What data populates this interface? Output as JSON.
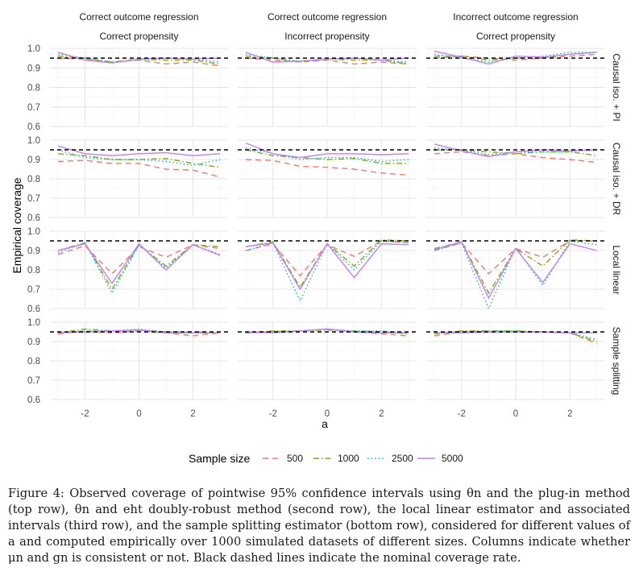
{
  "chart_data": {
    "type": "line",
    "facet_columns": [
      {
        "top": "Correct outcome regression",
        "bottom": "Correct propensity"
      },
      {
        "top": "Correct outcome regression",
        "bottom": "Incorrect propensity"
      },
      {
        "top": "Incorrect outcome regression",
        "bottom": "Correct propensity"
      }
    ],
    "facet_rows": [
      "Causal iso. + PI",
      "Causal iso. + DR",
      "Local linear",
      "Sample splitting"
    ],
    "xlabel": "a",
    "ylabel": "Empirical coverage",
    "x": [
      -3,
      -2,
      -1,
      0,
      1,
      2,
      3
    ],
    "x_ticks": [
      "-2",
      "0",
      "2"
    ],
    "x_tick_values": [
      -2,
      0,
      2
    ],
    "xlim": [
      -3.3,
      3.3
    ],
    "ylim": [
      0.6,
      1.0
    ],
    "y_ticks": [
      "0.6",
      "0.7",
      "0.8",
      "0.9",
      "1.0"
    ],
    "y_tick_values": [
      0.6,
      0.7,
      0.8,
      0.9,
      1.0
    ],
    "nominal_coverage": 0.95,
    "grid": true,
    "legend_title": "Sample size",
    "legend_position": "bottom",
    "series_styles": [
      {
        "name": "500",
        "color": "#f8766d",
        "dash": "7,5"
      },
      {
        "name": "1000",
        "color": "#7cae00",
        "dash": "7,3,1.5,3"
      },
      {
        "name": "2500",
        "color": "#00bfc4",
        "dash": "1.5,3"
      },
      {
        "name": "5000",
        "color": "#c77cff",
        "dash": ""
      }
    ],
    "panels": [
      [
        [
          [
            0.95,
            0.945,
            0.93,
            0.94,
            0.92,
            0.93,
            0.91
          ],
          [
            0.96,
            0.95,
            0.93,
            0.945,
            0.94,
            0.94,
            0.92
          ],
          [
            0.97,
            0.95,
            0.93,
            0.94,
            0.95,
            0.945,
            0.93
          ],
          [
            0.98,
            0.94,
            0.925,
            0.945,
            0.95,
            0.945,
            0.95
          ]
        ],
        [
          [
            0.95,
            0.94,
            0.93,
            0.94,
            0.92,
            0.93,
            0.92
          ],
          [
            0.96,
            0.95,
            0.93,
            0.945,
            0.94,
            0.94,
            0.92
          ],
          [
            0.97,
            0.95,
            0.935,
            0.945,
            0.95,
            0.94,
            0.93
          ],
          [
            0.98,
            0.93,
            0.935,
            0.945,
            0.95,
            0.94,
            0.95
          ]
        ],
        [
          [
            0.95,
            0.96,
            0.95,
            0.94,
            0.95,
            0.96,
            0.97
          ],
          [
            0.96,
            0.96,
            0.94,
            0.95,
            0.95,
            0.97,
            0.98
          ],
          [
            0.97,
            0.95,
            0.93,
            0.95,
            0.96,
            0.98,
            0.98
          ],
          [
            0.985,
            0.955,
            0.92,
            0.96,
            0.955,
            0.97,
            0.98
          ]
        ]
      ],
      [
        [
          [
            0.89,
            0.895,
            0.88,
            0.88,
            0.85,
            0.845,
            0.81
          ],
          [
            0.93,
            0.92,
            0.9,
            0.9,
            0.905,
            0.88,
            0.86
          ],
          [
            0.95,
            0.91,
            0.9,
            0.9,
            0.89,
            0.87,
            0.9
          ],
          [
            0.97,
            0.93,
            0.92,
            0.93,
            0.935,
            0.92,
            0.93
          ]
        ],
        [
          [
            0.9,
            0.895,
            0.865,
            0.86,
            0.85,
            0.83,
            0.82
          ],
          [
            0.95,
            0.92,
            0.91,
            0.9,
            0.905,
            0.88,
            0.88
          ],
          [
            0.96,
            0.93,
            0.9,
            0.91,
            0.91,
            0.89,
            0.9
          ],
          [
            0.985,
            0.93,
            0.91,
            0.93,
            0.93,
            0.925,
            0.93
          ]
        ],
        [
          [
            0.93,
            0.94,
            0.92,
            0.93,
            0.91,
            0.9,
            0.885
          ],
          [
            0.95,
            0.95,
            0.94,
            0.93,
            0.94,
            0.94,
            0.92
          ],
          [
            0.96,
            0.95,
            0.925,
            0.94,
            0.94,
            0.94,
            0.955
          ],
          [
            0.98,
            0.945,
            0.915,
            0.94,
            0.95,
            0.945,
            0.95
          ]
        ]
      ],
      [
        [
          [
            0.88,
            0.925,
            0.78,
            0.92,
            0.865,
            0.93,
            0.91
          ],
          [
            0.9,
            0.94,
            0.7,
            0.93,
            0.82,
            0.93,
            0.92
          ],
          [
            0.89,
            0.94,
            0.68,
            0.93,
            0.81,
            0.93,
            0.88
          ],
          [
            0.9,
            0.935,
            0.73,
            0.935,
            0.8,
            0.93,
            0.875
          ]
        ],
        [
          [
            0.9,
            0.935,
            0.77,
            0.93,
            0.87,
            0.95,
            0.94
          ],
          [
            0.92,
            0.945,
            0.71,
            0.935,
            0.82,
            0.955,
            0.95
          ],
          [
            0.9,
            0.94,
            0.64,
            0.935,
            0.8,
            0.95,
            0.94
          ],
          [
            0.92,
            0.94,
            0.7,
            0.935,
            0.76,
            0.935,
            0.93
          ]
        ],
        [
          [
            0.9,
            0.94,
            0.78,
            0.91,
            0.865,
            0.95,
            0.95
          ],
          [
            0.91,
            0.945,
            0.68,
            0.91,
            0.82,
            0.955,
            0.95
          ],
          [
            0.9,
            0.94,
            0.6,
            0.915,
            0.72,
            0.95,
            0.93
          ],
          [
            0.905,
            0.945,
            0.655,
            0.91,
            0.735,
            0.935,
            0.9
          ]
        ]
      ],
      [
        [
          [
            0.94,
            0.955,
            0.945,
            0.955,
            0.945,
            0.93,
            0.945
          ],
          [
            0.945,
            0.965,
            0.955,
            0.96,
            0.95,
            0.95,
            0.945
          ],
          [
            0.945,
            0.955,
            0.955,
            0.965,
            0.95,
            0.945,
            0.945
          ],
          [
            0.945,
            0.95,
            0.955,
            0.96,
            0.945,
            0.945,
            0.945
          ]
        ],
        [
          [
            0.945,
            0.95,
            0.955,
            0.965,
            0.95,
            0.94,
            0.93
          ],
          [
            0.945,
            0.955,
            0.955,
            0.96,
            0.955,
            0.95,
            0.94
          ],
          [
            0.945,
            0.95,
            0.955,
            0.965,
            0.955,
            0.955,
            0.945
          ],
          [
            0.95,
            0.945,
            0.955,
            0.965,
            0.95,
            0.945,
            0.945
          ]
        ],
        [
          [
            0.93,
            0.95,
            0.955,
            0.95,
            0.95,
            0.945,
            0.89
          ],
          [
            0.94,
            0.955,
            0.955,
            0.955,
            0.95,
            0.945,
            0.9
          ],
          [
            0.945,
            0.95,
            0.955,
            0.955,
            0.95,
            0.945,
            0.91
          ],
          [
            0.945,
            0.945,
            0.95,
            0.95,
            0.95,
            0.945,
            0.945
          ]
        ]
      ]
    ]
  },
  "caption": "Figure 4: Observed coverage of pointwise 95% confidence intervals using θn and the plug-in method (top row), θn and eht doubly-robust method (second row), the local linear estimator and associated intervals (third row), and the sample splitting estimator (bottom row), considered for different values of a and computed empirically over 1000 simulated datasets of different sizes. Columns indicate whether μn and gn is consistent or not. Black dashed lines indicate the nominal coverage rate."
}
